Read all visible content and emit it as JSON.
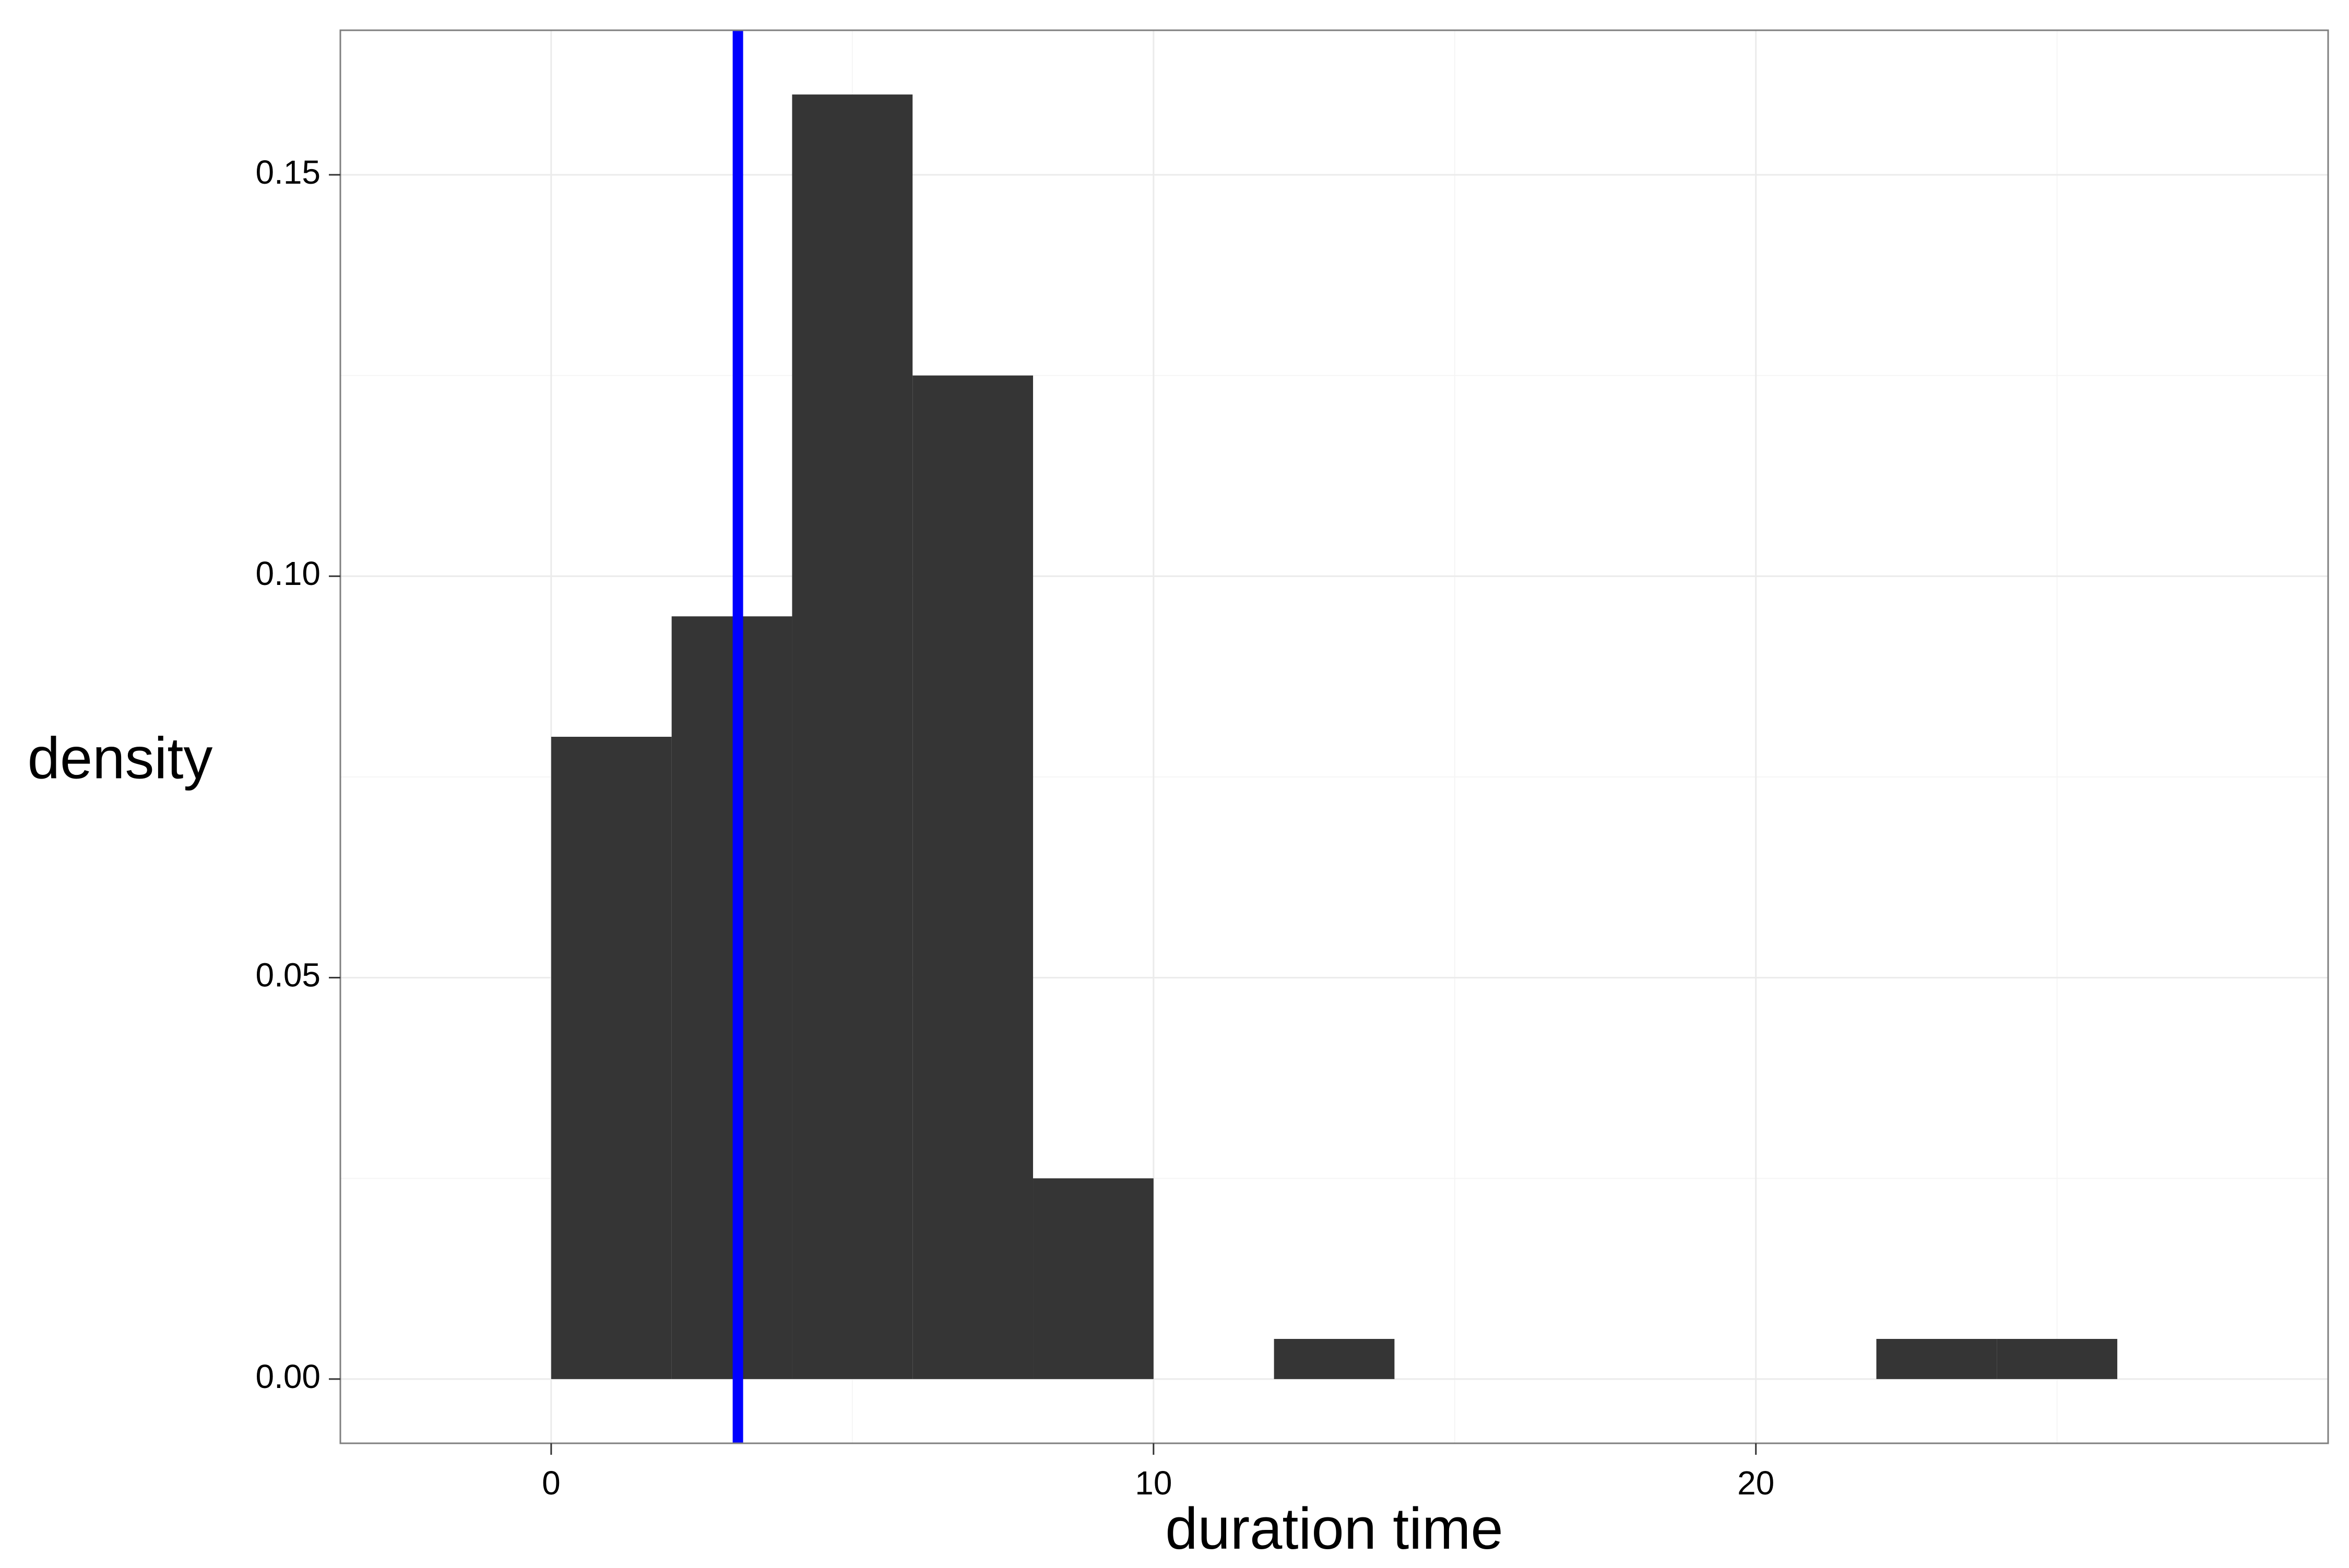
{
  "chart_data": {
    "type": "bar",
    "subtype": "histogram",
    "title": "",
    "xlabel": "duration time",
    "ylabel": "density",
    "xlim": [
      -3.5,
      29.5
    ],
    "ylim": [
      -0.008,
      0.168
    ],
    "x_ticks": [
      0,
      10,
      20
    ],
    "x_tick_labels": [
      "0",
      "10",
      "20"
    ],
    "y_ticks": [
      0.0,
      0.05,
      0.1,
      0.15
    ],
    "y_tick_labels": [
      "0.00",
      "0.05",
      "0.10",
      "0.15"
    ],
    "grid": true,
    "legend": "none",
    "bins": [
      {
        "x0": 0,
        "x1": 2,
        "density": 0.08
      },
      {
        "x0": 2,
        "x1": 4,
        "density": 0.095
      },
      {
        "x0": 4,
        "x1": 6,
        "density": 0.16
      },
      {
        "x0": 6,
        "x1": 8,
        "density": 0.125
      },
      {
        "x0": 8,
        "x1": 10,
        "density": 0.025
      },
      {
        "x0": 12,
        "x1": 14,
        "density": 0.005
      },
      {
        "x0": 22,
        "x1": 24,
        "density": 0.005
      },
      {
        "x0": 24,
        "x1": 26,
        "density": 0.005
      }
    ],
    "vline": {
      "x": 3.1,
      "color": "#0000ff"
    },
    "bar_color": "#353535"
  }
}
